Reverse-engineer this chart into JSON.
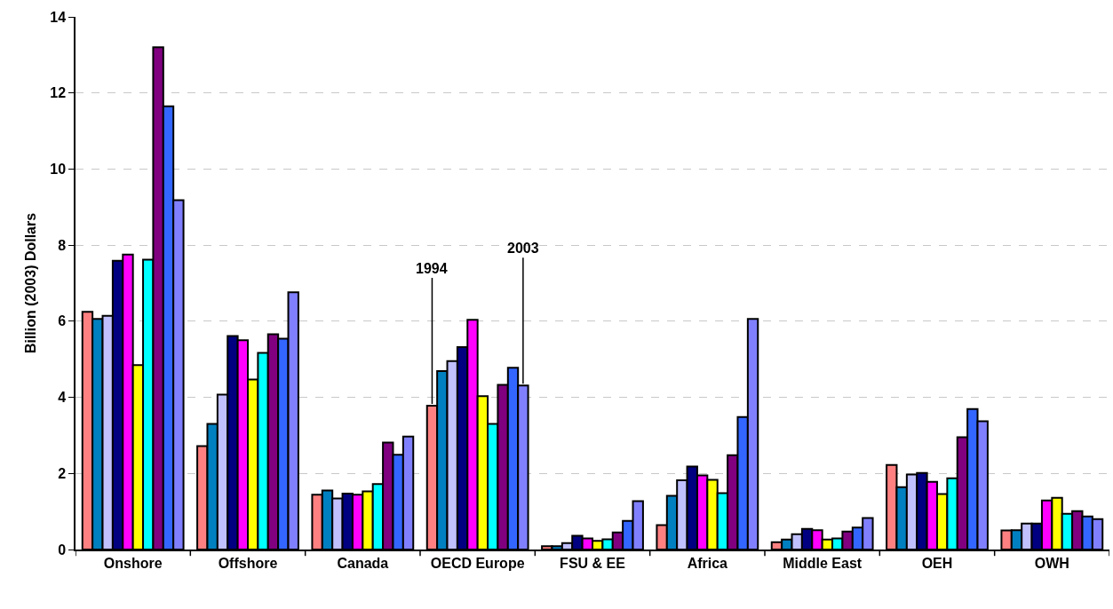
{
  "chart_data": {
    "type": "bar",
    "ylabel": "Billion (2003) Dollars",
    "categories": [
      "Onshore",
      "Offshore",
      "Canada",
      "OECD Europe",
      "FSU & EE",
      "Africa",
      "Middle East",
      "OEH",
      "OWH"
    ],
    "series": [
      {
        "color": "#ff8080",
        "values": [
          6.25,
          2.72,
          1.44,
          3.78,
          0.09,
          0.64,
          0.19,
          2.22,
          0.5
        ]
      },
      {
        "color": "#0080c0",
        "values": [
          6.06,
          3.3,
          1.55,
          4.69,
          0.09,
          1.41,
          0.26,
          1.64,
          0.51
        ]
      },
      {
        "color": "#c0c0ff",
        "values": [
          6.14,
          4.07,
          1.34,
          4.95,
          0.17,
          1.82,
          0.4,
          1.97,
          0.68
        ]
      },
      {
        "color": "#000080",
        "values": [
          7.59,
          5.61,
          1.47,
          5.32,
          0.36,
          2.18,
          0.54,
          2.01,
          0.68
        ]
      },
      {
        "color": "#ff00ff",
        "values": [
          7.75,
          5.5,
          1.44,
          6.04,
          0.29,
          1.95,
          0.51,
          1.78,
          1.29
        ]
      },
      {
        "color": "#ffff00",
        "values": [
          4.85,
          4.47,
          1.53,
          4.03,
          0.23,
          1.83,
          0.26,
          1.46,
          1.36
        ]
      },
      {
        "color": "#00ffff",
        "values": [
          7.62,
          5.17,
          1.72,
          3.3,
          0.27,
          1.48,
          0.29,
          1.87,
          0.94
        ]
      },
      {
        "color": "#800080",
        "values": [
          13.2,
          5.66,
          2.81,
          4.33,
          0.45,
          2.48,
          0.47,
          2.95,
          1.01
        ]
      },
      {
        "color": "#3366ff",
        "values": [
          11.65,
          5.54,
          2.49,
          4.78,
          0.75,
          3.48,
          0.58,
          3.69,
          0.87
        ]
      },
      {
        "color": "#8080ff",
        "values": [
          9.18,
          6.76,
          2.97,
          4.31,
          1.27,
          6.06,
          0.83,
          3.37,
          0.8
        ]
      }
    ],
    "annotations": [
      {
        "text": "1994",
        "y": 3.78
      },
      {
        "text": "2003",
        "y": 4.31
      }
    ],
    "ylim": [
      0,
      14
    ],
    "yticks": [
      0,
      2,
      4,
      6,
      8,
      10,
      12,
      14
    ],
    "grid": "y"
  }
}
